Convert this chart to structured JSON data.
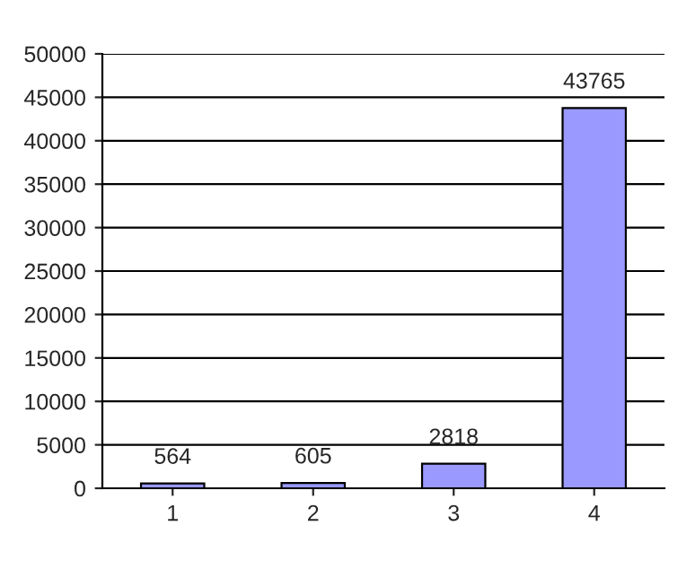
{
  "chart_data": {
    "type": "bar",
    "categories": [
      "1",
      "2",
      "3",
      "4"
    ],
    "values": [
      564,
      605,
      2818,
      43765
    ],
    "color": "#9999ff",
    "ylim": [
      0,
      50000
    ],
    "yticks": [
      0,
      5000,
      10000,
      15000,
      20000,
      25000,
      30000,
      35000,
      40000,
      45000,
      50000
    ],
    "grid": "y",
    "data_labels": true
  }
}
